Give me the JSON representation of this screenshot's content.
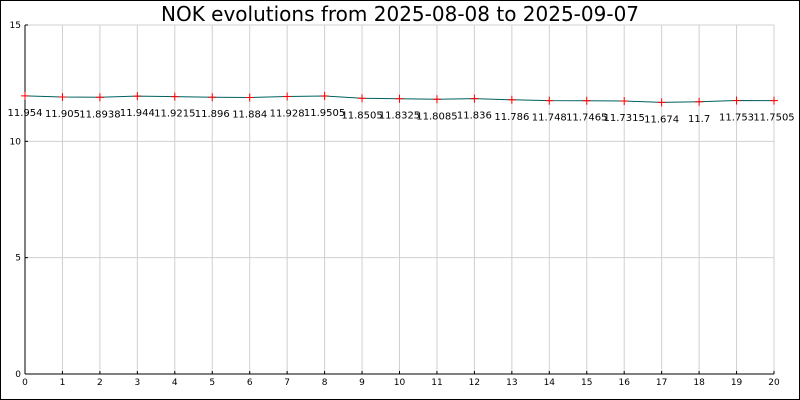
{
  "chart_data": {
    "type": "line",
    "title": "NOK evolutions from 2025-08-08 to 2025-09-07",
    "xlabel": "",
    "ylabel": "",
    "xlim": [
      0,
      20
    ],
    "ylim": [
      0,
      15
    ],
    "x_ticks": [
      0,
      1,
      2,
      3,
      4,
      5,
      6,
      7,
      8,
      9,
      10,
      11,
      12,
      13,
      14,
      15,
      16,
      17,
      18,
      19,
      20
    ],
    "y_ticks": [
      0,
      5,
      10,
      15
    ],
    "grid": true,
    "line_color": "#006060",
    "marker_color": "#ff0000",
    "series": [
      {
        "x": [
          0,
          1,
          2,
          3,
          4,
          5,
          6,
          7,
          8,
          9,
          10,
          11,
          12,
          13,
          14,
          15,
          16,
          17,
          18,
          19,
          20
        ],
        "values": [
          11.954,
          11.905,
          11.8938,
          11.944,
          11.9215,
          11.896,
          11.884,
          11.928,
          11.9505,
          11.8505,
          11.8325,
          11.8085,
          11.836,
          11.786,
          11.748,
          11.7465,
          11.7315,
          11.674,
          11.7,
          11.753,
          11.7505
        ],
        "labels": [
          "11.954",
          "11.905",
          "11.8938",
          "11.944",
          "11.9215",
          "11.896",
          "11.884",
          "11.928",
          "11.9505",
          "11.8505",
          "11.8325",
          "11.8085",
          "11.836",
          "11.786",
          "11.748",
          "11.7465",
          "11.7315",
          "11.674",
          "11.7",
          "11.753",
          "11.7505"
        ]
      }
    ]
  }
}
